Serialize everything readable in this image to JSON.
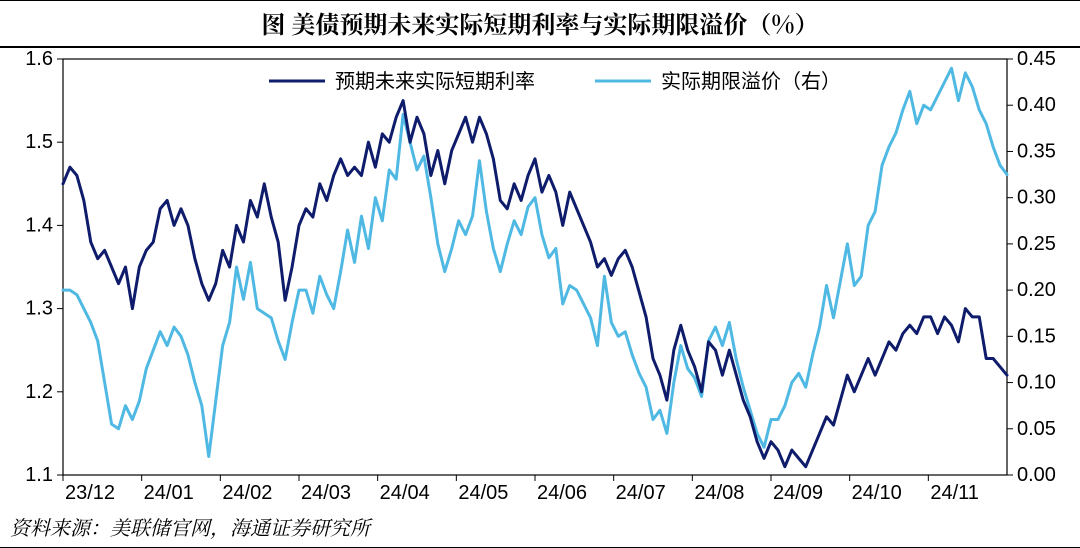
{
  "title": "图  美债预期未来实际短期利率与实际期限溢价（%）",
  "title_fontsize": 24,
  "source": "资料来源：美联储官网，海通证券研究所",
  "source_fontsize": 20,
  "chart": {
    "type": "line",
    "background_color": "#ffffff",
    "plot_border_color": "#000000",
    "axis_fontsize": 20,
    "legend_fontsize": 20,
    "x_categories": [
      "23/12",
      "24/01",
      "24/02",
      "24/03",
      "24/04",
      "24/05",
      "24/06",
      "24/07",
      "24/08",
      "24/09",
      "24/10",
      "24/11"
    ],
    "y_left": {
      "min": 1.1,
      "max": 1.6,
      "step": 0.1,
      "decimals": 1
    },
    "y_right": {
      "min": 0.0,
      "max": 0.45,
      "step": 0.05,
      "decimals": 2
    },
    "series": [
      {
        "name": "预期未来实际短期利率",
        "axis": "left",
        "color": "#0e1c6b",
        "line_width": 3,
        "data": [
          1.45,
          1.47,
          1.46,
          1.43,
          1.38,
          1.36,
          1.37,
          1.35,
          1.33,
          1.35,
          1.3,
          1.35,
          1.37,
          1.38,
          1.42,
          1.43,
          1.4,
          1.42,
          1.4,
          1.36,
          1.33,
          1.31,
          1.33,
          1.37,
          1.35,
          1.4,
          1.38,
          1.43,
          1.41,
          1.45,
          1.41,
          1.38,
          1.31,
          1.35,
          1.4,
          1.42,
          1.41,
          1.45,
          1.43,
          1.46,
          1.48,
          1.46,
          1.47,
          1.46,
          1.5,
          1.47,
          1.51,
          1.5,
          1.53,
          1.55,
          1.5,
          1.53,
          1.51,
          1.46,
          1.49,
          1.45,
          1.49,
          1.51,
          1.53,
          1.5,
          1.53,
          1.51,
          1.48,
          1.43,
          1.42,
          1.45,
          1.43,
          1.46,
          1.48,
          1.44,
          1.46,
          1.44,
          1.4,
          1.44,
          1.42,
          1.4,
          1.38,
          1.35,
          1.36,
          1.34,
          1.36,
          1.37,
          1.35,
          1.32,
          1.29,
          1.24,
          1.22,
          1.19,
          1.25,
          1.28,
          1.25,
          1.23,
          1.2,
          1.26,
          1.25,
          1.22,
          1.25,
          1.22,
          1.19,
          1.17,
          1.14,
          1.12,
          1.14,
          1.13,
          1.11,
          1.13,
          1.12,
          1.11,
          1.13,
          1.15,
          1.17,
          1.16,
          1.19,
          1.22,
          1.2,
          1.22,
          1.24,
          1.22,
          1.24,
          1.26,
          1.25,
          1.27,
          1.28,
          1.27,
          1.29,
          1.29,
          1.27,
          1.29,
          1.28,
          1.26,
          1.3,
          1.29,
          1.29,
          1.24,
          1.24,
          1.23,
          1.22
        ]
      },
      {
        "name": "实际期限溢价（右）",
        "axis": "right",
        "color": "#4fb9e3",
        "line_width": 3,
        "data": [
          0.2,
          0.2,
          0.195,
          0.18,
          0.165,
          0.145,
          0.1,
          0.055,
          0.05,
          0.075,
          0.06,
          0.08,
          0.115,
          0.135,
          0.155,
          0.14,
          0.16,
          0.15,
          0.13,
          0.1,
          0.075,
          0.02,
          0.08,
          0.14,
          0.165,
          0.225,
          0.19,
          0.23,
          0.18,
          0.175,
          0.17,
          0.145,
          0.125,
          0.165,
          0.2,
          0.2,
          0.175,
          0.215,
          0.195,
          0.18,
          0.22,
          0.265,
          0.23,
          0.28,
          0.245,
          0.3,
          0.275,
          0.33,
          0.32,
          0.39,
          0.36,
          0.33,
          0.345,
          0.3,
          0.25,
          0.22,
          0.245,
          0.275,
          0.26,
          0.28,
          0.34,
          0.285,
          0.245,
          0.22,
          0.25,
          0.275,
          0.26,
          0.29,
          0.3,
          0.26,
          0.235,
          0.245,
          0.185,
          0.205,
          0.2,
          0.185,
          0.17,
          0.14,
          0.215,
          0.165,
          0.15,
          0.155,
          0.13,
          0.11,
          0.095,
          0.06,
          0.07,
          0.045,
          0.1,
          0.14,
          0.115,
          0.105,
          0.085,
          0.145,
          0.16,
          0.14,
          0.165,
          0.125,
          0.095,
          0.07,
          0.045,
          0.03,
          0.06,
          0.06,
          0.075,
          0.1,
          0.11,
          0.095,
          0.13,
          0.16,
          0.205,
          0.17,
          0.21,
          0.25,
          0.205,
          0.215,
          0.27,
          0.285,
          0.335,
          0.355,
          0.37,
          0.395,
          0.415,
          0.38,
          0.4,
          0.395,
          0.41,
          0.425,
          0.44,
          0.405,
          0.435,
          0.42,
          0.395,
          0.38,
          0.355,
          0.335,
          0.325
        ]
      }
    ]
  }
}
